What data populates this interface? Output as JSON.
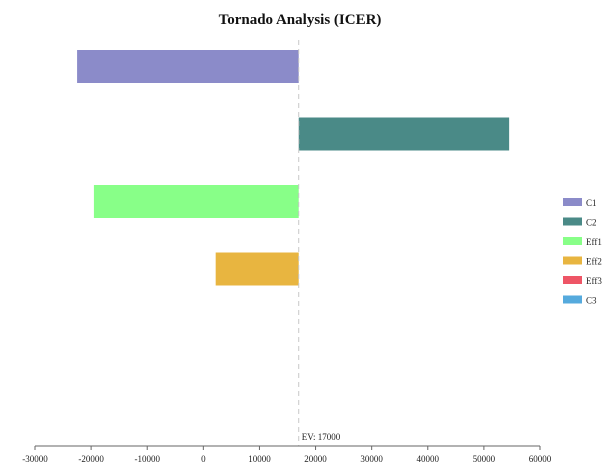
{
  "chart_data": {
    "type": "bar",
    "orientation": "horizontal",
    "variant": "tornado",
    "title": "Tornado Analysis (ICER)",
    "xlabel": "",
    "ylabel": "",
    "xlim": [
      -30000,
      60000
    ],
    "x_ticks": [
      -30000,
      -20000,
      -10000,
      0,
      10000,
      20000,
      30000,
      40000,
      50000,
      60000
    ],
    "baseline": 17000,
    "baseline_label": "EV: 17000",
    "grid": false,
    "legend_position": "right",
    "bars": [
      {
        "name": "C1",
        "low": -22500,
        "high": 17000,
        "color": "#8b8bc9"
      },
      {
        "name": "C2",
        "low": 17000,
        "high": 54500,
        "color": "#4a8a87"
      },
      {
        "name": "Eff1",
        "low": -19500,
        "high": 17000,
        "color": "#88ff88"
      },
      {
        "name": "Eff2",
        "low": 2200,
        "high": 17000,
        "color": "#e8b540"
      },
      {
        "name": "Eff3",
        "low": 17000,
        "high": 17000,
        "color": "#ee5566"
      },
      {
        "name": "C3",
        "low": 17000,
        "high": 17000,
        "color": "#55aadd"
      }
    ]
  }
}
